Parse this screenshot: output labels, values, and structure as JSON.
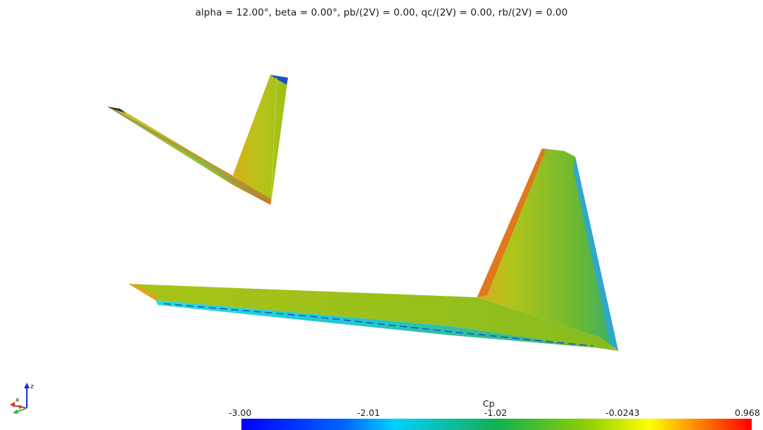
{
  "title": "alpha = 12.00°, beta = 0.00°, pb/(2V) = 0.00, qc/(2V) = 0.00, rb/(2V) = 0.00",
  "colorbar": {
    "title": "Cp",
    "ticks": [
      "-3.00",
      "-2.01",
      "-1.02",
      "-0.0243",
      "0.968"
    ],
    "range": [
      -3.0,
      0.968
    ],
    "colormap": [
      "#0000ff",
      "#00c8ff",
      "#00ff80",
      "#80ff00",
      "#ffff00",
      "#ff0000"
    ]
  },
  "axes_triad": {
    "labels": [
      "z",
      "x",
      "y"
    ]
  },
  "surface_colors": {
    "upper": "#9fc820",
    "leading_edge": "#e07a20",
    "lower": "#3fb878",
    "suction": "#00c8e0",
    "tip": "#1a40c0"
  }
}
